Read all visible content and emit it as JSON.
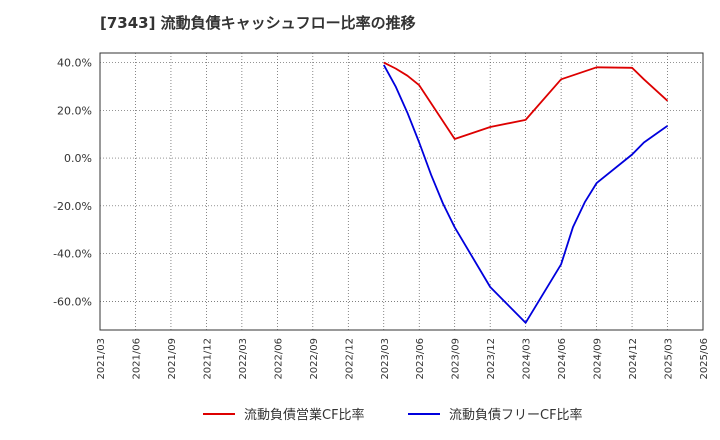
{
  "chart_data": {
    "type": "line",
    "title": "[7343]  流動負債キャッシュフロー比率の推移",
    "xlabel": "",
    "ylabel": "",
    "ylim": [
      -72,
      44
    ],
    "yticks": [
      40,
      20,
      0,
      -20,
      -40,
      -60
    ],
    "ytick_labels": [
      "40.0%",
      "20.0%",
      "0.0%",
      "-20.0%",
      "-40.0%",
      "-60.0%"
    ],
    "x_ticks": [
      "2021/03",
      "2021/06",
      "2021/09",
      "2021/12",
      "2022/03",
      "2022/06",
      "2022/09",
      "2022/12",
      "2023/03",
      "2023/06",
      "2023/09",
      "2023/12",
      "2024/03",
      "2024/06",
      "2024/09",
      "2024/12",
      "2025/03",
      "2025/06"
    ],
    "grid": true,
    "legend_position": "bottom",
    "series": [
      {
        "name": "流動負債営業CF比率",
        "color": "#dd0000",
        "points": [
          {
            "x": "2023/03",
            "y": 40.0
          },
          {
            "x": "2023/04",
            "y": 37.5
          },
          {
            "x": "2023/05",
            "y": 34.5
          },
          {
            "x": "2023/06",
            "y": 30.5
          },
          {
            "x": "2023/09",
            "y": 8.0
          },
          {
            "x": "2023/12",
            "y": 13.0
          },
          {
            "x": "2024/03",
            "y": 16.0
          },
          {
            "x": "2024/06",
            "y": 33.0
          },
          {
            "x": "2024/09",
            "y": 38.0
          },
          {
            "x": "2024/12",
            "y": 37.8
          },
          {
            "x": "2025/01",
            "y": 33.0
          },
          {
            "x": "2025/03",
            "y": 24.0
          }
        ]
      },
      {
        "name": "流動負債フリーCF比率",
        "color": "#0000dd",
        "points": [
          {
            "x": "2023/03",
            "y": 39.0
          },
          {
            "x": "2023/04",
            "y": 30.0
          },
          {
            "x": "2023/05",
            "y": 19.0
          },
          {
            "x": "2023/06",
            "y": 6.5
          },
          {
            "x": "2023/07",
            "y": -7.0
          },
          {
            "x": "2023/08",
            "y": -19.0
          },
          {
            "x": "2023/09",
            "y": -29.0
          },
          {
            "x": "2023/12",
            "y": -54.0
          },
          {
            "x": "2024/03",
            "y": -69.0
          },
          {
            "x": "2024/06",
            "y": -44.5
          },
          {
            "x": "2024/07",
            "y": -29.0
          },
          {
            "x": "2024/08",
            "y": -18.5
          },
          {
            "x": "2024/09",
            "y": -10.5
          },
          {
            "x": "2024/12",
            "y": 1.5
          },
          {
            "x": "2025/01",
            "y": 6.5
          },
          {
            "x": "2025/03",
            "y": 13.5
          }
        ]
      }
    ]
  }
}
